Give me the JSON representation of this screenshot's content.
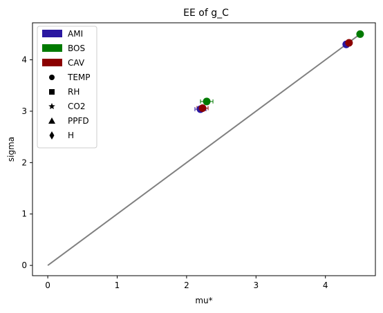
{
  "chart_data": {
    "type": "scatter",
    "title": "EE of g_C",
    "xlabel": "mu*",
    "ylabel": "sigma",
    "xlim": [
      -0.22,
      4.72
    ],
    "ylim": [
      -0.2,
      4.72
    ],
    "xticks": [
      0,
      1,
      2,
      3,
      4
    ],
    "yticks": [
      0,
      1,
      2,
      3,
      4
    ],
    "grid": false,
    "legend": {
      "placement": "top-left",
      "site_entries": [
        {
          "label": "AMI",
          "color": "#2a17a0"
        },
        {
          "label": "BOS",
          "color": "#007a00"
        },
        {
          "label": "CAV",
          "color": "#8b0000"
        }
      ],
      "marker_entries": [
        {
          "label": "TEMP",
          "marker": "circle"
        },
        {
          "label": "RH",
          "marker": "square"
        },
        {
          "label": "CO2",
          "marker": "star"
        },
        {
          "label": "PPFD",
          "marker": "triangle"
        },
        {
          "label": "H",
          "marker": "diamond"
        }
      ]
    },
    "reference_line": {
      "x": [
        0,
        4.5
      ],
      "y": [
        0,
        4.5
      ],
      "color": "#808080"
    },
    "series": [
      {
        "name": "AMI",
        "color": "#2a17a0",
        "points": [
          {
            "x": 4.3,
            "y": 4.3,
            "marker": "circle"
          },
          {
            "x": 2.2,
            "y": 3.04,
            "marker": "circle",
            "xerr": 0.08
          }
        ]
      },
      {
        "name": "BOS",
        "color": "#007a00",
        "points": [
          {
            "x": 4.5,
            "y": 4.5,
            "marker": "circle"
          },
          {
            "x": 2.29,
            "y": 3.19,
            "marker": "circle",
            "xerr": 0.09
          }
        ]
      },
      {
        "name": "CAV",
        "color": "#8b0000",
        "points": [
          {
            "x": 4.34,
            "y": 4.33,
            "marker": "circle"
          },
          {
            "x": 2.23,
            "y": 3.06,
            "marker": "circle",
            "xerr": 0.08
          }
        ]
      }
    ]
  }
}
